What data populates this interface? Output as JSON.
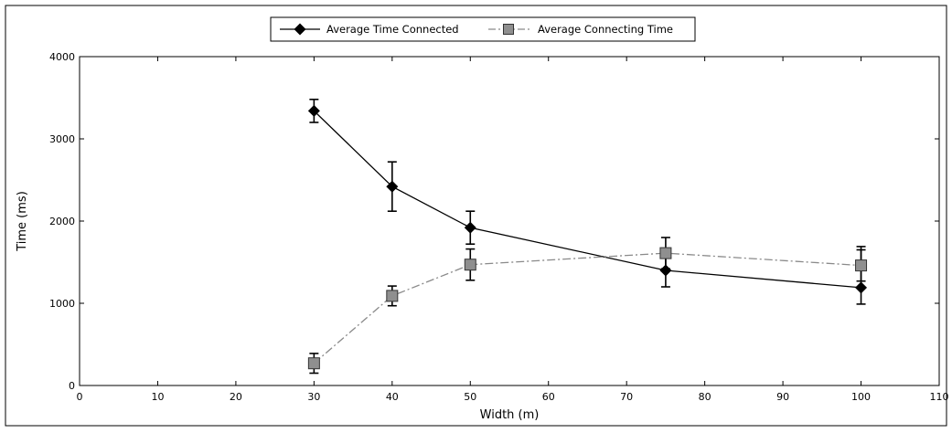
{
  "chart_data": {
    "type": "line",
    "xlabel": "Width (m)",
    "ylabel": "Time (ms)",
    "xlim": [
      0,
      110
    ],
    "ylim": [
      0,
      4000
    ],
    "x_ticks": [
      0,
      10,
      20,
      30,
      40,
      50,
      60,
      70,
      80,
      90,
      100,
      110
    ],
    "y_ticks": [
      0,
      1000,
      2000,
      3000,
      4000
    ],
    "x_tick_labels": [
      "0",
      "10",
      "20",
      "30",
      "40",
      "50",
      "60",
      "70",
      "80",
      "90",
      "100",
      "110"
    ],
    "y_tick_labels": [
      "0",
      "1000",
      "2000",
      "3000",
      "4000"
    ],
    "grid": false,
    "legend_position": "top-center",
    "series": [
      {
        "name": "Average Time Connected",
        "marker": "diamond",
        "line_style": "solid",
        "color": "#000000",
        "x": [
          30,
          40,
          50,
          75,
          100
        ],
        "y": [
          3340,
          2420,
          1920,
          1400,
          1190
        ],
        "err_low": [
          140,
          300,
          200,
          200,
          200
        ],
        "err_high": [
          140,
          300,
          200,
          200,
          500
        ]
      },
      {
        "name": "Average Connecting Time",
        "marker": "square",
        "line_style": "dash-dot",
        "color": "#8a8a8a",
        "x": [
          30,
          40,
          50,
          75,
          100
        ],
        "y": [
          270,
          1090,
          1470,
          1610,
          1460
        ],
        "err_low": [
          120,
          120,
          190,
          190,
          190
        ],
        "err_high": [
          120,
          120,
          190,
          190,
          190
        ]
      }
    ]
  }
}
